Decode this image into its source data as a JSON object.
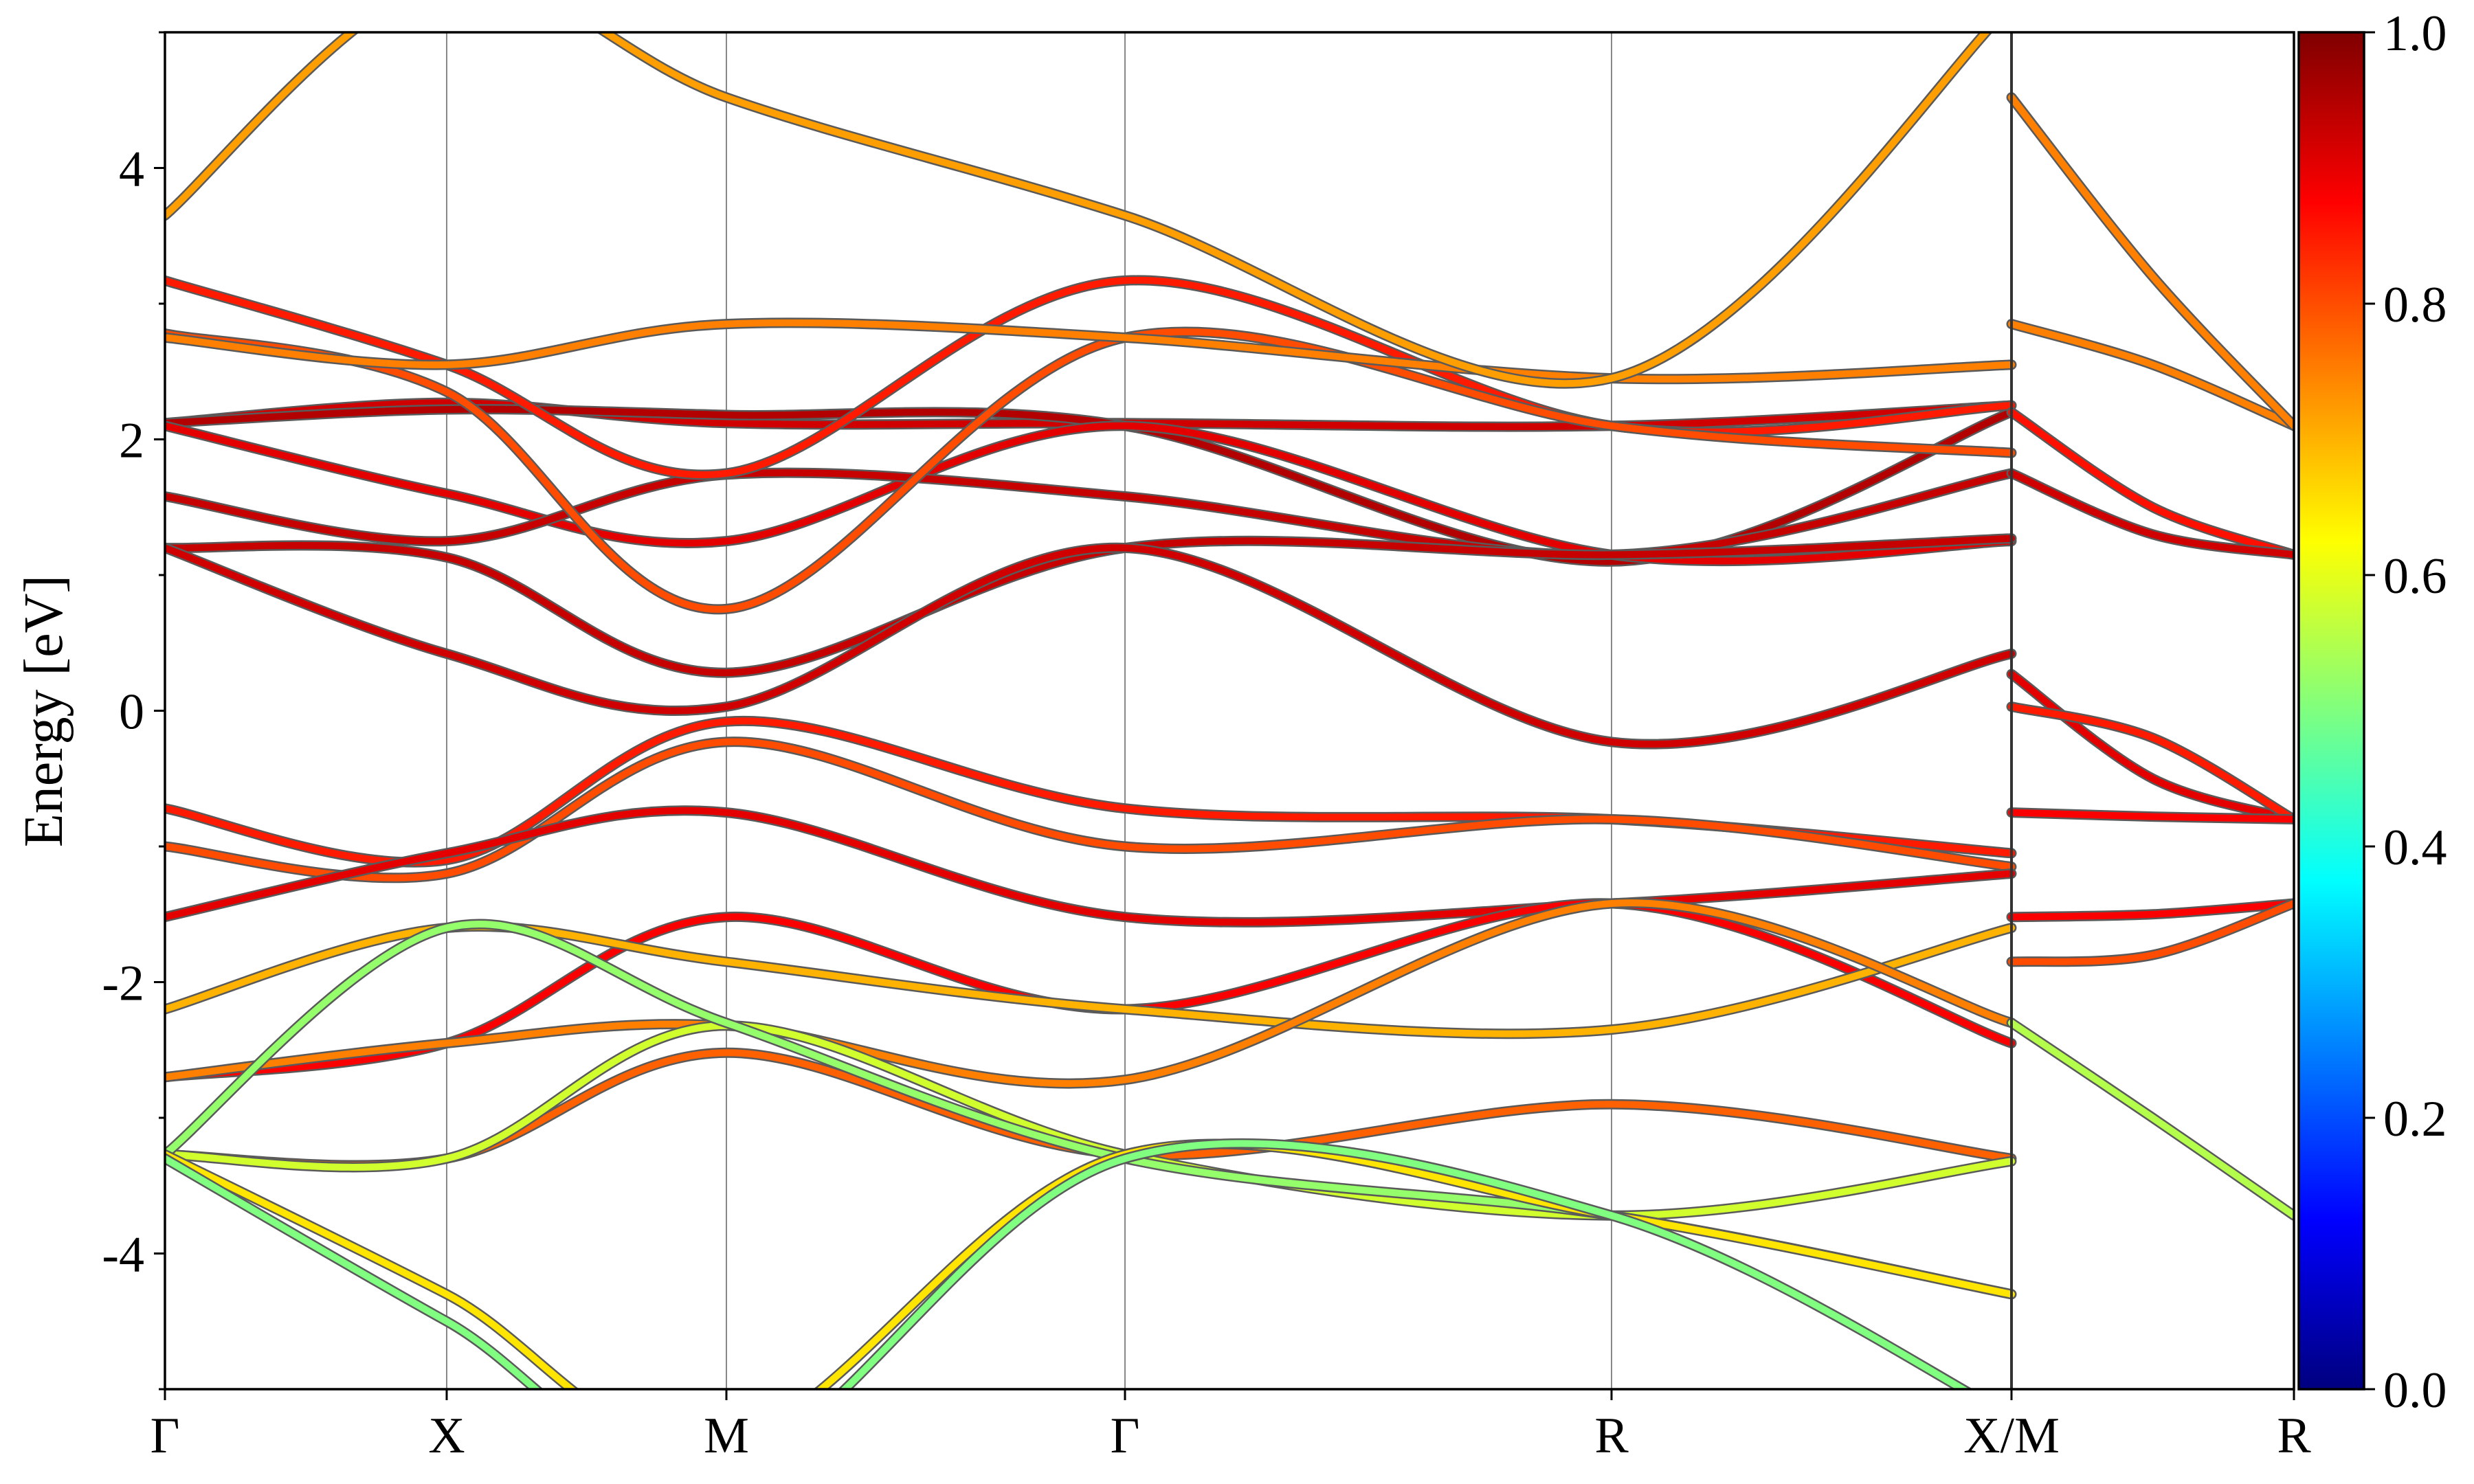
{
  "chart_data": {
    "type": "line",
    "title": "",
    "ylabel": "Energy [eV]",
    "xlabel": "",
    "ylim": [
      -5,
      5
    ],
    "x_ticks": [
      "Γ",
      "X",
      "M",
      "Γ",
      "R",
      "X/M",
      "R"
    ],
    "y_ticks": [
      "-4",
      "-2",
      "0",
      "2",
      "4"
    ],
    "grid": "vertical lines at high-symmetry points",
    "colormap": "jet",
    "colorbar": {
      "range": [
        0.0,
        1.0
      ],
      "ticks": [
        "0.0",
        "0.2",
        "0.4",
        "0.6",
        "0.8",
        "1.0"
      ]
    },
    "note_x_units": "segment index, 0 = Γ, 1 = X, 2 = M, 3 = Γ, 4 = R, 5 = X/M, 6 = R",
    "series": [
      {
        "weight": 0.92,
        "points": [
          [
            0,
            2.12
          ],
          [
            1,
            2.27
          ],
          [
            2,
            2.12
          ],
          [
            3,
            2.12
          ],
          [
            4,
            2.1
          ],
          [
            5,
            2.25
          ]
        ]
      },
      {
        "weight": 0.95,
        "points": [
          [
            0,
            2.12
          ],
          [
            1,
            2.22
          ],
          [
            2,
            2.18
          ],
          [
            3,
            2.1
          ],
          [
            4,
            1.1
          ],
          [
            5,
            2.2
          ]
        ]
      },
      {
        "weight": 0.9,
        "points": [
          [
            0,
            2.1
          ],
          [
            1,
            1.6
          ],
          [
            2,
            1.25
          ],
          [
            3,
            2.1
          ],
          [
            4,
            1.15
          ],
          [
            5,
            1.25
          ]
        ]
      },
      {
        "weight": 0.93,
        "points": [
          [
            0,
            1.58
          ],
          [
            1,
            1.25
          ],
          [
            2,
            1.74
          ],
          [
            3,
            1.58
          ],
          [
            4,
            1.15
          ],
          [
            5,
            1.75
          ]
        ]
      },
      {
        "weight": 0.93,
        "points": [
          [
            0,
            1.2
          ],
          [
            1,
            1.13
          ],
          [
            2,
            0.28
          ],
          [
            3,
            1.2
          ],
          [
            4,
            1.15
          ],
          [
            5,
            1.27
          ]
        ]
      },
      {
        "weight": 0.92,
        "points": [
          [
            0,
            1.2
          ],
          [
            1,
            0.42
          ],
          [
            2,
            0.03
          ],
          [
            3,
            1.2
          ],
          [
            4,
            -0.23
          ],
          [
            5,
            0.42
          ]
        ]
      },
      {
        "weight": 0.85,
        "points": [
          [
            0,
            3.17
          ],
          [
            1,
            2.55
          ],
          [
            2,
            1.75
          ],
          [
            3,
            3.17
          ],
          [
            4,
            2.1
          ],
          [
            5,
            2.25
          ]
        ]
      },
      {
        "weight": 0.8,
        "points": [
          [
            0,
            2.78
          ],
          [
            1,
            2.35
          ],
          [
            2,
            0.75
          ],
          [
            3,
            2.75
          ],
          [
            4,
            2.1
          ],
          [
            5,
            1.9
          ]
        ]
      },
      {
        "weight": 0.75,
        "points": [
          [
            0,
            2.75
          ],
          [
            1,
            2.55
          ],
          [
            2,
            2.85
          ],
          [
            3,
            2.75
          ],
          [
            4,
            2.45
          ],
          [
            5,
            2.55
          ]
        ]
      },
      {
        "weight": 0.72,
        "points": [
          [
            0,
            3.65
          ],
          [
            1,
            5.4
          ],
          [
            2,
            4.52
          ],
          [
            3,
            3.65
          ],
          [
            4,
            2.45
          ],
          [
            5,
            5.2
          ]
        ]
      },
      {
        "weight": 0.85,
        "points": [
          [
            0,
            -0.72
          ],
          [
            1,
            -1.1
          ],
          [
            2,
            -0.08
          ],
          [
            3,
            -0.72
          ],
          [
            4,
            -0.8
          ],
          [
            5,
            -1.05
          ]
        ]
      },
      {
        "weight": 0.8,
        "points": [
          [
            0,
            -1.0
          ],
          [
            1,
            -1.2
          ],
          [
            2,
            -0.23
          ],
          [
            3,
            -1.0
          ],
          [
            4,
            -0.8
          ],
          [
            5,
            -1.15
          ]
        ]
      },
      {
        "weight": 0.9,
        "points": [
          [
            0,
            -1.52
          ],
          [
            1,
            -1.05
          ],
          [
            2,
            -0.75
          ],
          [
            3,
            -1.52
          ],
          [
            4,
            -1.42
          ],
          [
            5,
            -1.2
          ]
        ]
      },
      {
        "weight": 0.88,
        "points": [
          [
            0,
            -2.7
          ],
          [
            1,
            -2.45
          ],
          [
            2,
            -1.52
          ],
          [
            3,
            -2.2
          ],
          [
            4,
            -1.42
          ],
          [
            5,
            -2.45
          ]
        ]
      },
      {
        "weight": 0.7,
        "points": [
          [
            0,
            -2.2
          ],
          [
            1,
            -1.6
          ],
          [
            2,
            -1.85
          ],
          [
            3,
            -2.2
          ],
          [
            4,
            -2.35
          ],
          [
            5,
            -1.6
          ]
        ]
      },
      {
        "weight": 0.75,
        "points": [
          [
            0,
            -2.7
          ],
          [
            1,
            -2.45
          ],
          [
            2,
            -2.32
          ],
          [
            3,
            -2.72
          ],
          [
            4,
            -1.42
          ],
          [
            5,
            -2.3
          ]
        ]
      },
      {
        "weight": 0.78,
        "points": [
          [
            0,
            -3.27
          ],
          [
            1,
            -3.3
          ],
          [
            2,
            -2.52
          ],
          [
            3,
            -3.27
          ],
          [
            4,
            -2.9
          ],
          [
            5,
            -3.3
          ]
        ]
      },
      {
        "weight": 0.58,
        "points": [
          [
            0,
            -3.27
          ],
          [
            1,
            -3.3
          ],
          [
            2,
            -2.32
          ],
          [
            3,
            -3.27
          ],
          [
            4,
            -3.72
          ],
          [
            5,
            -3.32
          ]
        ]
      },
      {
        "weight": 0.52,
        "points": [
          [
            0,
            -3.27
          ],
          [
            1,
            -1.6
          ],
          [
            2,
            -2.3
          ],
          [
            3,
            -3.3
          ],
          [
            4,
            -3.72
          ],
          [
            5,
            -4.3
          ]
        ]
      },
      {
        "weight": 0.65,
        "points": [
          [
            0,
            -3.27
          ],
          [
            1,
            -4.3
          ],
          [
            2,
            -5.4
          ],
          [
            3,
            -3.27
          ],
          [
            4,
            -3.72
          ],
          [
            5,
            -4.3
          ]
        ]
      },
      {
        "weight": 0.5,
        "points": [
          [
            0,
            -3.3
          ],
          [
            1,
            -4.5
          ],
          [
            2,
            -5.6
          ],
          [
            3,
            -3.3
          ],
          [
            4,
            -3.72
          ],
          [
            5,
            -5.2
          ]
        ]
      },
      {
        "weight": 0.86,
        "points": [
          [
            5,
            2.2
          ],
          [
            5.5,
            1.5
          ],
          [
            6,
            1.15
          ]
        ]
      },
      {
        "weight": 0.92,
        "points": [
          [
            5,
            1.75
          ],
          [
            5.5,
            1.3
          ],
          [
            6,
            1.15
          ]
        ]
      },
      {
        "weight": 0.9,
        "points": [
          [
            5,
            0.27
          ],
          [
            5.5,
            -0.5
          ],
          [
            6,
            -0.8
          ]
        ]
      },
      {
        "weight": 0.85,
        "points": [
          [
            5,
            0.03
          ],
          [
            5.5,
            -0.2
          ],
          [
            6,
            -0.8
          ]
        ]
      },
      {
        "weight": 0.88,
        "points": [
          [
            5,
            -0.75
          ],
          [
            5.5,
            -0.78
          ],
          [
            6,
            -0.8
          ]
        ]
      },
      {
        "weight": 0.88,
        "points": [
          [
            5,
            -1.52
          ],
          [
            5.5,
            -1.5
          ],
          [
            6,
            -1.42
          ]
        ]
      },
      {
        "weight": 0.8,
        "points": [
          [
            5,
            -1.85
          ],
          [
            5.5,
            -1.8
          ],
          [
            6,
            -1.42
          ]
        ]
      },
      {
        "weight": 0.55,
        "points": [
          [
            5,
            -2.3
          ],
          [
            5.5,
            -3.0
          ],
          [
            6,
            -3.72
          ]
        ]
      },
      {
        "weight": 0.75,
        "points": [
          [
            5,
            2.85
          ],
          [
            5.5,
            2.55
          ],
          [
            6,
            2.1
          ]
        ]
      },
      {
        "weight": 0.75,
        "points": [
          [
            5,
            4.52
          ],
          [
            5.5,
            3.2
          ],
          [
            6,
            2.1
          ]
        ]
      }
    ]
  }
}
